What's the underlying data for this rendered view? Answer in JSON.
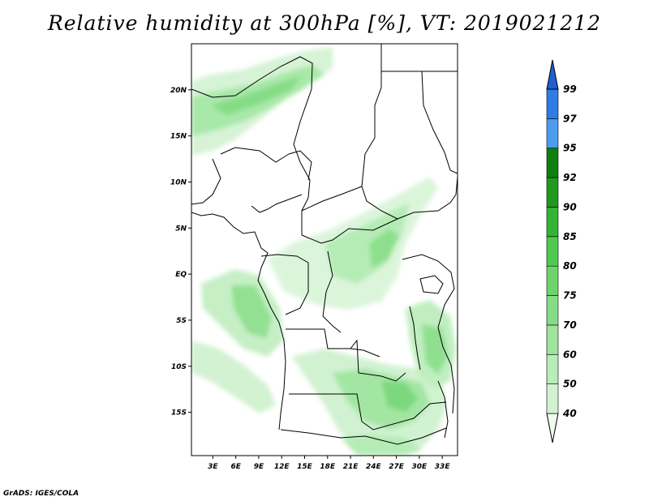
{
  "title": "Relative humidity at 300hPa [%], VT: 2019021212",
  "credit": "GrADS: IGES/COLA",
  "axes": {
    "lat_labels": [
      "20N",
      "15N",
      "10N",
      "5N",
      "EQ",
      "5S",
      "10S",
      "15S"
    ],
    "lat_values": [
      20,
      15,
      10,
      5,
      0,
      -5,
      -10,
      -15
    ],
    "lon_labels": [
      "3E",
      "6E",
      "9E",
      "12E",
      "15E",
      "18E",
      "21E",
      "24E",
      "27E",
      "30E",
      "33E"
    ],
    "lon_values": [
      3,
      6,
      9,
      12,
      15,
      18,
      21,
      24,
      27,
      30,
      33
    ],
    "lon_range": [
      0.2,
      35
    ],
    "lat_range": [
      -19.7,
      25
    ]
  },
  "colorbar": {
    "labels": [
      "40",
      "50",
      "60",
      "70",
      "75",
      "80",
      "85",
      "90",
      "92",
      "95",
      "97",
      "99"
    ],
    "colors": [
      "#f0fbf0",
      "#d2f2d2",
      "#b8ecb8",
      "#9de49d",
      "#86dc86",
      "#6dd46d",
      "#4fca4f",
      "#33b533",
      "#1f9a1f",
      "#0f7f0f",
      "#4c9cf0",
      "#2e7ce6",
      "#1f5fd0"
    ]
  },
  "colors": {
    "map_border": "#000000",
    "background": "#ffffff"
  }
}
